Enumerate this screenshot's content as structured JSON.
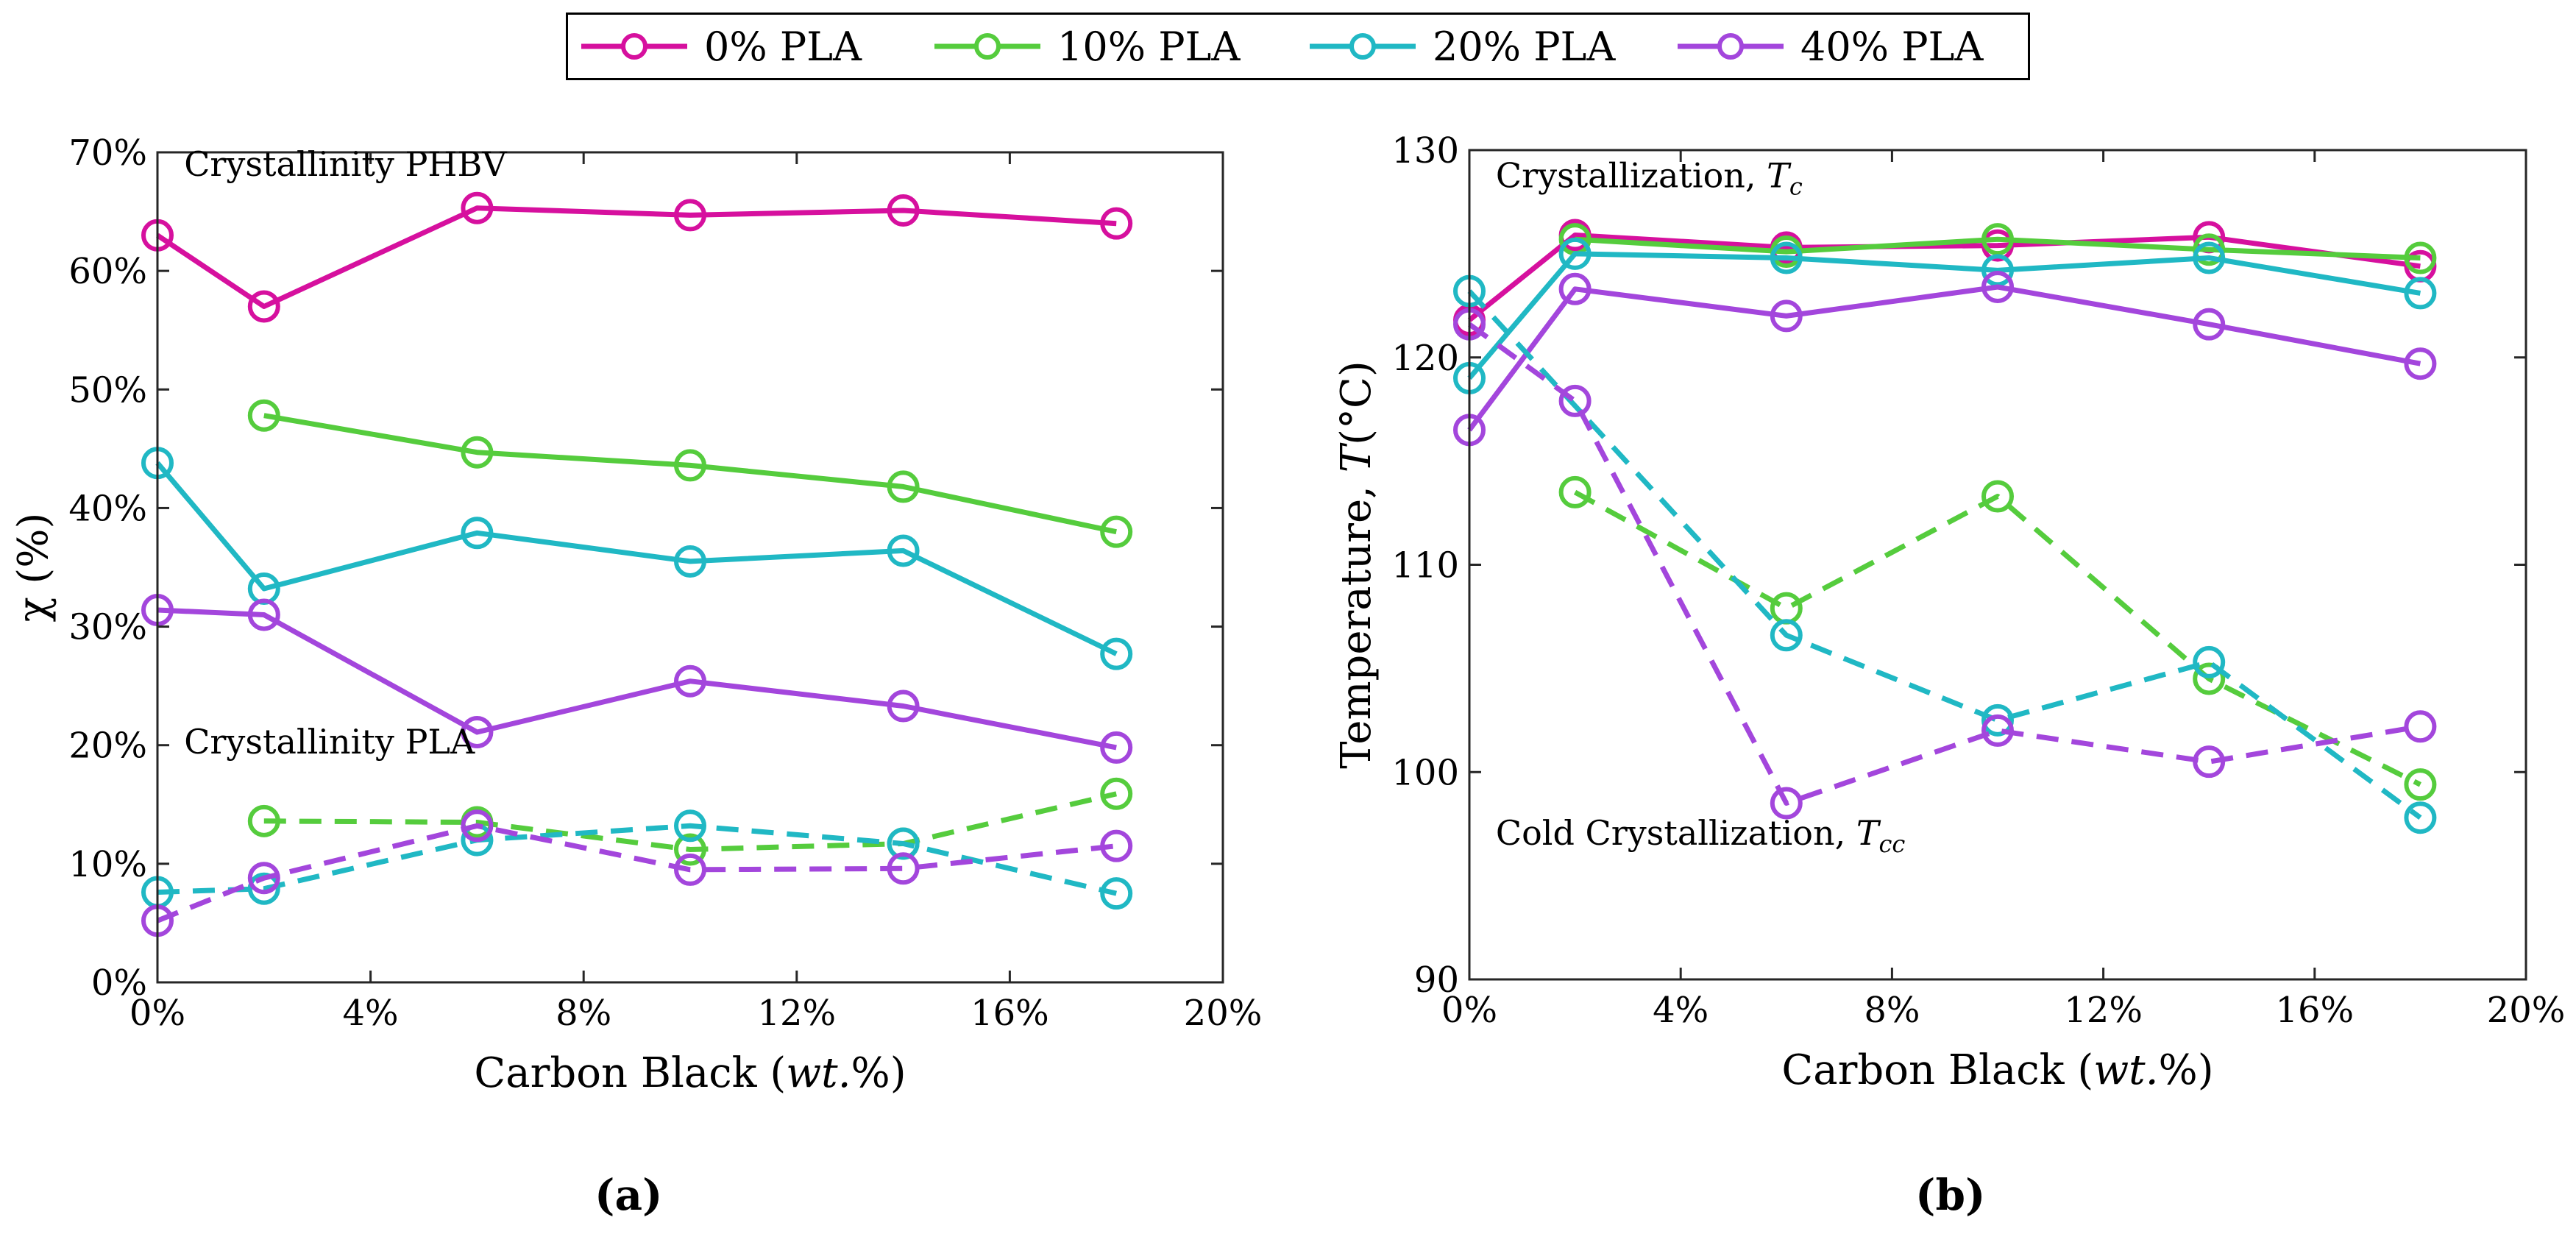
{
  "legend": {
    "items": [
      {
        "label": "0% PLA",
        "color": "#D6109E"
      },
      {
        "label": "10% PLA",
        "color": "#55CC3D"
      },
      {
        "label": "20% PLA",
        "color": "#20B8C4"
      },
      {
        "label": "40% PLA",
        "color": "#A346DC"
      }
    ]
  },
  "panels": {
    "a": {
      "label": "(a)"
    },
    "b": {
      "label": "(b)"
    }
  },
  "chart_data": [
    {
      "type": "line",
      "id": "a",
      "xlabel": "Carbon Black (wt.%)",
      "xlabel_parts": {
        "pre": "Carbon Black (",
        "italic": "wt.",
        "post": "%)"
      },
      "ylabel": "χ (%)",
      "xlim": [
        0,
        20
      ],
      "ylim": [
        0,
        70
      ],
      "xticks": [
        0,
        4,
        8,
        12,
        16,
        20
      ],
      "xtick_labels": [
        "0%",
        "4%",
        "8%",
        "12%",
        "16%",
        "20%"
      ],
      "yticks": [
        0,
        10,
        20,
        30,
        40,
        50,
        60,
        70
      ],
      "ytick_labels": [
        "0%",
        "10%",
        "20%",
        "30%",
        "40%",
        "50%",
        "60%",
        "70%"
      ],
      "annotations": [
        {
          "text": "Crystallinity PHBV",
          "x": 0.5,
          "y": 68
        },
        {
          "text": "Crystallinity PLA",
          "x": 0.5,
          "y": 19.3
        }
      ],
      "series": [
        {
          "name": "0% PLA (PHBV)",
          "color": "#D6109E",
          "dash": false,
          "x": [
            0,
            2,
            6,
            10,
            14,
            18
          ],
          "y": [
            63.0,
            57.0,
            65.3,
            64.7,
            65.1,
            64.0
          ]
        },
        {
          "name": "10% PLA (PHBV)",
          "color": "#55CC3D",
          "dash": false,
          "x": [
            2,
            6,
            10,
            14,
            18
          ],
          "y": [
            47.8,
            44.7,
            43.6,
            41.8,
            38.0
          ]
        },
        {
          "name": "20% PLA (PHBV)",
          "color": "#20B8C4",
          "dash": false,
          "x": [
            0,
            2,
            6,
            10,
            14,
            18
          ],
          "y": [
            43.8,
            33.2,
            37.9,
            35.5,
            36.4,
            27.7
          ]
        },
        {
          "name": "40% PLA (PHBV)",
          "color": "#A346DC",
          "dash": false,
          "x": [
            0,
            2,
            6,
            10,
            14,
            18
          ],
          "y": [
            31.4,
            31.0,
            21.1,
            25.4,
            23.3,
            19.8
          ]
        },
        {
          "name": "10% PLA (PLA)",
          "color": "#55CC3D",
          "dash": true,
          "x": [
            2,
            6,
            10,
            14,
            18
          ],
          "y": [
            13.6,
            13.5,
            11.2,
            11.7,
            15.9
          ]
        },
        {
          "name": "20% PLA (PLA)",
          "color": "#20B8C4",
          "dash": true,
          "x": [
            0,
            2,
            6,
            10,
            14,
            18
          ],
          "y": [
            7.6,
            7.9,
            12.0,
            13.2,
            11.7,
            7.5
          ]
        },
        {
          "name": "40% PLA (PLA)",
          "color": "#A346DC",
          "dash": true,
          "x": [
            0,
            2,
            6,
            10,
            14,
            18
          ],
          "y": [
            5.2,
            8.8,
            13.2,
            9.5,
            9.6,
            11.5
          ]
        }
      ]
    },
    {
      "type": "line",
      "id": "b",
      "xlabel": "Carbon Black (wt.%)",
      "xlabel_parts": {
        "pre": "Carbon Black (",
        "italic": "wt.",
        "post": "%)"
      },
      "ylabel": "Temperature, T(°C)",
      "ylabel_parts": {
        "pre": "Temperature, ",
        "italic": "T",
        "post": "(°C)"
      },
      "xlim": [
        0,
        20
      ],
      "ylim": [
        90,
        130
      ],
      "xticks": [
        0,
        4,
        8,
        12,
        16,
        20
      ],
      "xtick_labels": [
        "0%",
        "4%",
        "8%",
        "12%",
        "16%",
        "20%"
      ],
      "yticks": [
        90,
        100,
        110,
        120,
        130
      ],
      "ytick_labels": [
        "90",
        "100",
        "110",
        "120",
        "130"
      ],
      "annotations": [
        {
          "text": "Crystallization, Tc",
          "pre": "Crystallization, ",
          "italic": "T",
          "sub": "c",
          "x": 0.5,
          "y": 128.2
        },
        {
          "text": "Cold Crystallization, Tcc",
          "pre": "Cold Crystallization, ",
          "italic": "T",
          "sub": "cc",
          "x": 0.5,
          "y": 96.5
        }
      ],
      "series": [
        {
          "name": "0% PLA (Tc)",
          "color": "#D6109E",
          "dash": false,
          "x": [
            0,
            2,
            6,
            10,
            14,
            18
          ],
          "y": [
            121.8,
            125.9,
            125.3,
            125.4,
            125.8,
            124.4
          ]
        },
        {
          "name": "10% PLA (Tc)",
          "color": "#55CC3D",
          "dash": false,
          "x": [
            2,
            6,
            10,
            14,
            18
          ],
          "y": [
            125.7,
            125.1,
            125.7,
            125.2,
            124.8
          ]
        },
        {
          "name": "20% PLA (Tc)",
          "color": "#20B8C4",
          "dash": false,
          "x": [
            0,
            2,
            6,
            10,
            14,
            18
          ],
          "y": [
            119.0,
            125.0,
            124.8,
            124.2,
            124.8,
            123.1
          ]
        },
        {
          "name": "40% PLA (Tc)",
          "color": "#A346DC",
          "dash": false,
          "x": [
            0,
            2,
            6,
            10,
            14,
            18
          ],
          "y": [
            116.5,
            123.3,
            122.0,
            123.4,
            121.6,
            119.7
          ]
        },
        {
          "name": "10% PLA (Tcc)",
          "color": "#55CC3D",
          "dash": true,
          "x": [
            2,
            6,
            10,
            14,
            18
          ],
          "y": [
            113.5,
            107.9,
            113.3,
            104.5,
            99.4
          ]
        },
        {
          "name": "20% PLA (Tcc)",
          "color": "#20B8C4",
          "dash": true,
          "x": [
            0,
            6,
            10,
            14,
            18
          ],
          "y": [
            123.2,
            106.6,
            102.5,
            105.3,
            97.8
          ]
        },
        {
          "name": "40% PLA (Tcc)",
          "color": "#A346DC",
          "dash": true,
          "x": [
            0,
            2,
            6,
            10,
            14,
            18
          ],
          "y": [
            121.6,
            117.9,
            98.5,
            102.0,
            100.5,
            102.2
          ]
        }
      ]
    }
  ]
}
